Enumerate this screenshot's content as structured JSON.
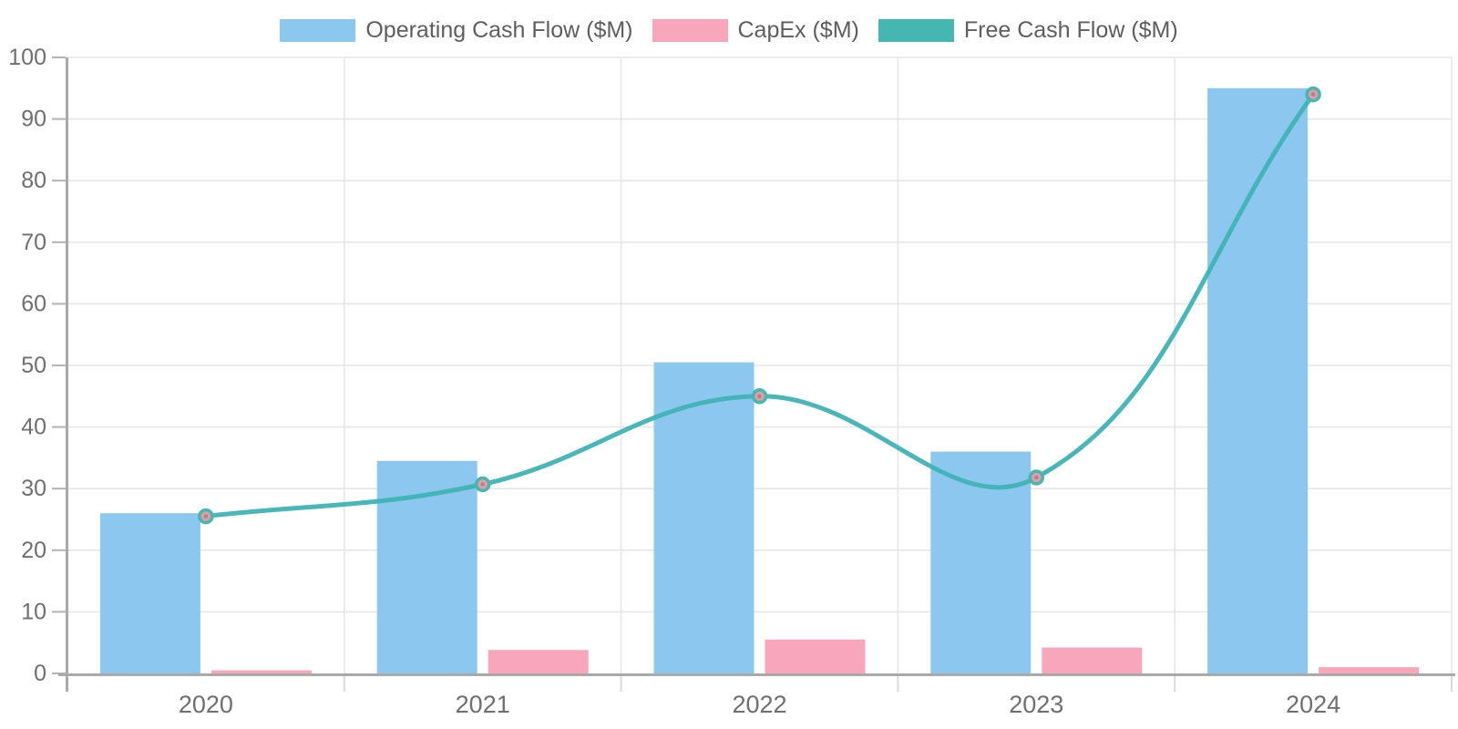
{
  "chart_data": {
    "type": "combo-bar-line",
    "title": "",
    "categories": [
      "2020",
      "2021",
      "2022",
      "2023",
      "2024"
    ],
    "series": [
      {
        "name": "Operating Cash Flow ($M)",
        "type": "bar",
        "color": "#8CC7F0",
        "values": [
          26,
          34.5,
          50.5,
          36,
          95
        ]
      },
      {
        "name": "CapEx ($M)",
        "type": "bar",
        "color": "#F8A6BB",
        "values": [
          0.5,
          3.8,
          5.5,
          4.2,
          1
        ]
      },
      {
        "name": "Free Cash Flow ($M)",
        "type": "line",
        "color": "#46B7B0",
        "line_color": "#3FB3B4",
        "marker_fill": "#E89AA4",
        "marker_center": "#97868B",
        "values": [
          25.5,
          30.7,
          45,
          31.8,
          94
        ]
      }
    ],
    "ylim": [
      0,
      100
    ],
    "ytick_step": 10,
    "ytick_labels": [
      "0",
      "10",
      "20",
      "30",
      "40",
      "50",
      "60",
      "70",
      "80",
      "90",
      "100"
    ],
    "xlabel": "",
    "ylabel": "",
    "grid": true,
    "legend_position": "top"
  },
  "colors": {
    "background": "#FFFFFF",
    "grid": "#E6E6E6",
    "axis": "#A9A9A9",
    "tick_mark": "#B3B3B3",
    "x_tick_mark": "#DADADA",
    "tick_text": "#6F6F6F",
    "legend_text": "#5E5E5E"
  }
}
